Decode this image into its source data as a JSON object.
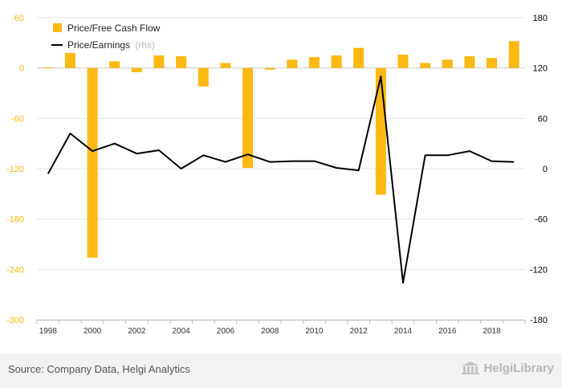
{
  "chart_data": {
    "type": "bar+line",
    "categories": [
      "1998",
      "1999",
      "2000",
      "2001",
      "2002",
      "2003",
      "2004",
      "2005",
      "2006",
      "2007",
      "2008",
      "2009",
      "2010",
      "2011",
      "2012",
      "2013",
      "2014",
      "2015",
      "2016",
      "2017",
      "2018",
      "2019"
    ],
    "x_tick_labels": [
      "1998",
      "2000",
      "2002",
      "2004",
      "2006",
      "2008",
      "2010",
      "2012",
      "2014",
      "2016",
      "2018"
    ],
    "series": [
      {
        "name": "Price/Free Cash Flow",
        "type": "bar",
        "axis": "left",
        "color": "#FDB813",
        "values": [
          1,
          18,
          -226,
          8,
          -5,
          15,
          14,
          -22,
          6,
          -119,
          -2,
          10,
          13,
          15,
          24,
          -151,
          16,
          6,
          10,
          14,
          12,
          32
        ]
      },
      {
        "name": "Price/Earnings",
        "legend_suffix": "(rhs)",
        "type": "line",
        "axis": "right",
        "color": "#000000",
        "values": [
          -6,
          42,
          21,
          30,
          18,
          22,
          0,
          16,
          8,
          17,
          8,
          9,
          9,
          1,
          -2,
          110,
          -136,
          16,
          16,
          21,
          9,
          8
        ]
      }
    ],
    "y_left": {
      "ticks": [
        60,
        0,
        -60,
        -120,
        -180,
        -240,
        -300
      ],
      "tick_labels": [
        "60",
        "0",
        "-60",
        "-120",
        "-180",
        "-240",
        "-300"
      ],
      "range": [
        -300,
        60
      ],
      "tick_color": "#FDB813"
    },
    "y_right": {
      "ticks": [
        180,
        120,
        60,
        0,
        -60,
        -120,
        -180
      ],
      "tick_labels": [
        "180",
        "120",
        "60",
        "0",
        "-60",
        "-120",
        "-180"
      ],
      "range": [
        -180,
        180
      ]
    },
    "grid": "horizontal",
    "legend_position": "top-left"
  },
  "footer": {
    "source": "Source: Company Data, Helgi Analytics",
    "logo_text": "HelgiLibrary"
  }
}
